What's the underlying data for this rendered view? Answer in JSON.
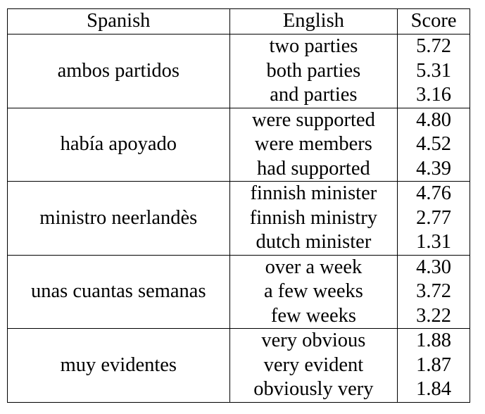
{
  "headers": {
    "spanish": "Spanish",
    "english": "English",
    "score": "Score"
  },
  "groups": [
    {
      "spanish": "ambos partidos",
      "rows": [
        {
          "english": "two parties",
          "score": "5.72",
          "bold": true
        },
        {
          "english": "both parties",
          "score": "5.31",
          "bold": true
        },
        {
          "english": "and parties",
          "score": "3.16",
          "bold": false
        }
      ]
    },
    {
      "spanish": "había apoyado",
      "rows": [
        {
          "english": "were supported",
          "score": "4.80",
          "bold": false
        },
        {
          "english": "were members",
          "score": "4.52",
          "bold": false
        },
        {
          "english": "had supported",
          "score": "4.39",
          "bold": true
        }
      ]
    },
    {
      "spanish": "ministro neerlandès",
      "rows": [
        {
          "english": "finnish minister",
          "score": "4.76",
          "bold": false
        },
        {
          "english": "finnish ministry",
          "score": "2.77",
          "bold": false
        },
        {
          "english": "dutch minister",
          "score": "1.31",
          "bold": true
        }
      ]
    },
    {
      "spanish": "unas cuantas semanas",
      "rows": [
        {
          "english": "over a week",
          "score": "4.30",
          "bold": false
        },
        {
          "english": "a few weeks",
          "score": "3.72",
          "bold": true
        },
        {
          "english": "few weeks",
          "score": "3.22",
          "bold": true
        }
      ]
    },
    {
      "spanish": "muy evidentes",
      "rows": [
        {
          "english": "very obvious",
          "score": "1.88",
          "bold": true
        },
        {
          "english": "very evident",
          "score": "1.87",
          "bold": true
        },
        {
          "english": "obviously very",
          "score": "1.84",
          "bold": false
        }
      ]
    }
  ]
}
